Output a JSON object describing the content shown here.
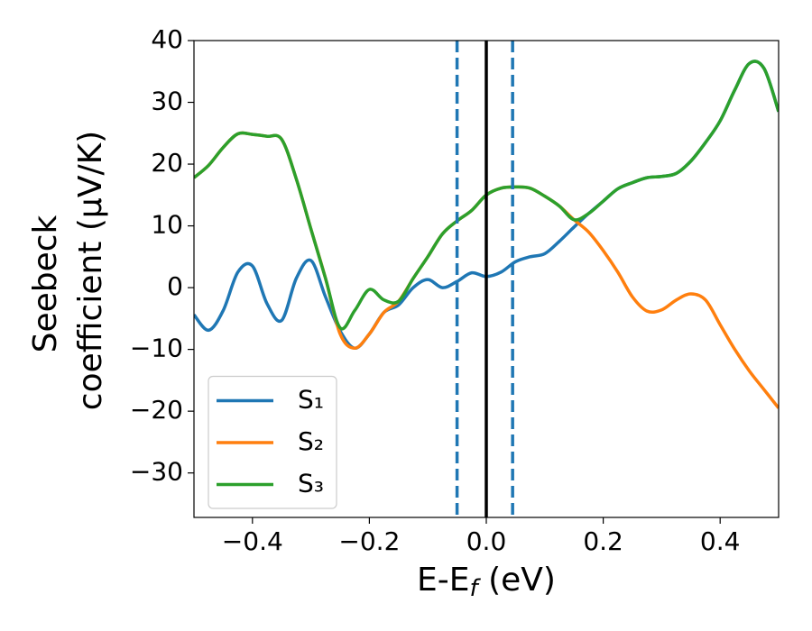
{
  "chart_data": {
    "type": "line",
    "ylabel": [
      "Seebeck",
      "coefficient  (μV/K)"
    ],
    "xlabel": [
      "E-E",
      "f",
      " (eV)"
    ],
    "x": [
      -0.5,
      -0.475,
      -0.45,
      -0.425,
      -0.4,
      -0.375,
      -0.35,
      -0.325,
      -0.3,
      -0.275,
      -0.25,
      -0.225,
      -0.2,
      -0.175,
      -0.15,
      -0.125,
      -0.1,
      -0.075,
      -0.05,
      -0.025,
      0,
      0.025,
      0.05,
      0.075,
      0.1,
      0.125,
      0.15,
      0.175,
      0.2,
      0.225,
      0.25,
      0.275,
      0.3,
      0.325,
      0.35,
      0.375,
      0.4,
      0.425,
      0.45,
      0.475,
      0.5
    ],
    "series": [
      {
        "name": "S₁",
        "color": "#1f77b4",
        "values": [
          -4.4,
          -6.9,
          -3.7,
          2.5,
          3.5,
          -2.6,
          -5.3,
          1.5,
          4.4,
          -1.5,
          -7.0,
          -9.8,
          -7.5,
          -4.0,
          -2.8,
          0,
          1.3,
          0,
          1.0,
          2.4,
          1.8,
          2.5,
          4.2,
          5.0,
          5.5,
          7.5,
          9.8,
          12.0,
          14.0,
          16.0,
          17.0,
          17.8,
          18.0,
          18.5,
          20.5,
          23.5,
          27,
          32,
          36.3,
          35.5,
          28.5
        ]
      },
      {
        "name": "S₂",
        "color": "#ff7f0e",
        "values": [
          17.8,
          19.8,
          22.7,
          24.9,
          24.8,
          24.5,
          24,
          17.6,
          9.5,
          1.5,
          -7.5,
          -9.8,
          -7.5,
          -4.0,
          -2.2,
          1.5,
          5,
          8.7,
          10.8,
          12.5,
          15,
          16.1,
          16.3,
          16.1,
          14.8,
          13.2,
          11.0,
          9.0,
          6,
          2.5,
          -1.5,
          -3.8,
          -3.6,
          -2,
          -1,
          -2,
          -6,
          -10,
          -13.5,
          -16.5,
          -19.5
        ]
      },
      {
        "name": "S₃",
        "color": "#2ca02c",
        "values": [
          17.8,
          19.8,
          22.7,
          24.9,
          24.8,
          24.5,
          24,
          17.6,
          9.5,
          1.5,
          -6.5,
          -3.7,
          -0.3,
          -2.0,
          -2.2,
          1.5,
          5,
          8.7,
          10.8,
          12.5,
          15,
          16.1,
          16.3,
          16.1,
          14.8,
          13.2,
          11.0,
          12.0,
          14.0,
          16.0,
          17.0,
          17.8,
          18.0,
          18.5,
          20.5,
          23.5,
          27,
          32,
          36.3,
          35.5,
          28.5
        ]
      }
    ],
    "vlines": [
      {
        "x": -0.05,
        "color": "#1f77b4",
        "style": "dashed"
      },
      {
        "x": 0.045,
        "color": "#1f77b4",
        "style": "dashed"
      },
      {
        "x": 0,
        "color": "#000000",
        "style": "solid"
      }
    ],
    "xlim": [
      -0.5,
      0.5
    ],
    "ylim": [
      -37.2,
      40
    ],
    "xticks": [
      {
        "value": -0.4,
        "label": "−0.4"
      },
      {
        "value": -0.2,
        "label": "−0.2"
      },
      {
        "value": 0,
        "label": "0.0"
      },
      {
        "value": 0.2,
        "label": "0.2"
      },
      {
        "value": 0.4,
        "label": "0.4"
      }
    ],
    "yticks": [
      40,
      30,
      20,
      10,
      0,
      {
        "value": -10,
        "label": "−10"
      },
      {
        "value": -20,
        "label": "−20"
      },
      {
        "value": -30,
        "label": "−30"
      }
    ],
    "legend": "lower left",
    "grid": false
  }
}
